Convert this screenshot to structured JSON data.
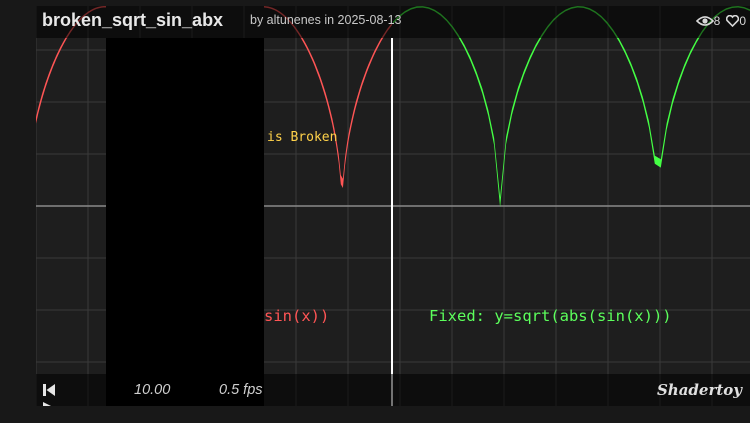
{
  "header": {
    "title": "broken_sqrt_sin_abx",
    "byline": "by altunenes in 2025-08-13",
    "views": "8",
    "likes": "0"
  },
  "canvas": {
    "broken_label": "is Broken",
    "sin_label": "sin(x))",
    "fixed_label": "Fixed: y=sqrt(abs(sin(x)))",
    "colors": {
      "broken": "#ff5555",
      "fixed": "#44ff44",
      "broken_label": "#ffd24a",
      "divider": "#ffffff",
      "grid": "#3a3a3a",
      "axis": "#8a8a8a"
    }
  },
  "controls": {
    "time": "10.00",
    "fps": "0.5 fps",
    "logo": "Shadertoy"
  }
}
